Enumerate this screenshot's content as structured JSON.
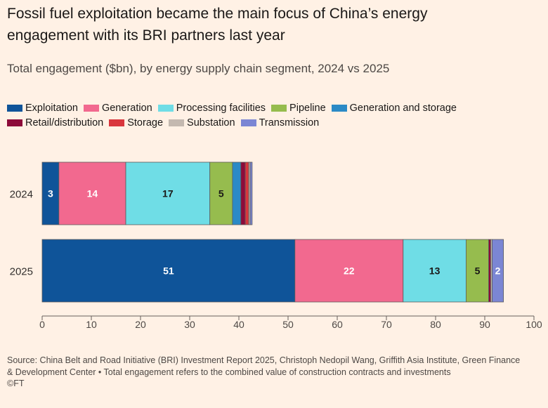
{
  "title": "Fossil fuel exploitation became the main focus of China’s energy engagement with its BRI partners last year",
  "subtitle": "Total engagement ($bn), by energy supply chain segment, 2024 vs 2025",
  "source": "Source: China Belt and Road Initiative (BRI) Investment Report 2025, Christoph Nedopil Wang, Griffith Asia Institute, Green Finance & Development Center • Total engagement refers to the combined value of construction contracts and investments",
  "credit": "©FT",
  "chart_data": {
    "type": "bar",
    "orientation": "horizontal",
    "stacked": true,
    "categories": [
      "2024",
      "2025"
    ],
    "series": [
      {
        "name": "Exploitation",
        "color": "#0f5499",
        "values": [
          3.4,
          51.4
        ]
      },
      {
        "name": "Generation",
        "color": "#f2698f",
        "values": [
          13.6,
          22.0
        ]
      },
      {
        "name": "Processing facilities",
        "color": "#6fdde6",
        "values": [
          17.1,
          12.8
        ]
      },
      {
        "name": "Pipeline",
        "color": "#96bc4e",
        "values": [
          4.6,
          4.6
        ]
      },
      {
        "name": "Generation and storage",
        "color": "#2b8ac6",
        "values": [
          1.7,
          0
        ]
      },
      {
        "name": "Retail/distribution",
        "color": "#8d0b3a",
        "values": [
          0.9,
          0.4
        ]
      },
      {
        "name": "Storage",
        "color": "#d9363d",
        "values": [
          0.7,
          0
        ]
      },
      {
        "name": "Substation",
        "color": "#c4b9b0",
        "values": [
          0.3,
          0.3
        ]
      },
      {
        "name": "Transmission",
        "color": "#7b86d4",
        "values": [
          0.4,
          2.3
        ]
      }
    ],
    "data_labels": {
      "2024": [
        "3",
        "14",
        "17",
        "5",
        "",
        "",
        "",
        "",
        ""
      ],
      "2025": [
        "51",
        "22",
        "13",
        "5",
        "",
        "",
        "",
        "",
        "2"
      ]
    },
    "xlim": [
      0,
      100
    ],
    "xticks": [
      0,
      10,
      20,
      30,
      40,
      50,
      60,
      70,
      80,
      90,
      100
    ],
    "legend_position": "top-left",
    "grid": false
  }
}
